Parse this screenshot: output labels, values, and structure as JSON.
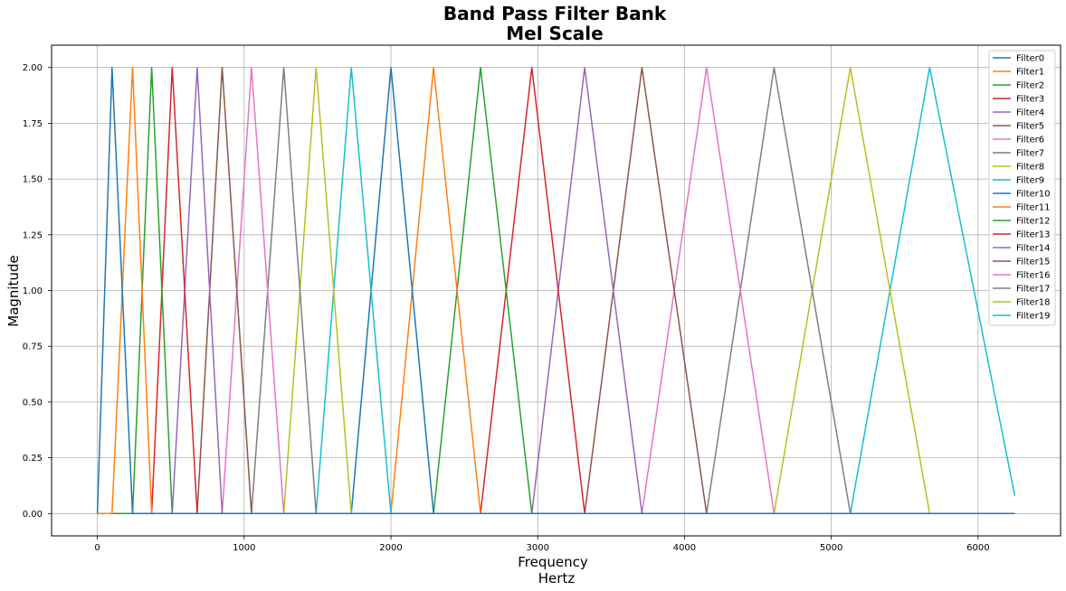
{
  "chart_data": {
    "type": "line",
    "title": "Band Pass Filter Bank",
    "subtitle": "Mel Scale",
    "xlabel": "Frequency",
    "xlabel_sub": "Hertz",
    "ylabel": "Magnitude",
    "xlim": [
      -312,
      6562
    ],
    "ylim": [
      -0.1,
      2.1
    ],
    "x_ticks": [
      0,
      1000,
      2000,
      3000,
      4000,
      5000,
      6000
    ],
    "y_ticks": [
      0.0,
      0.25,
      0.5,
      0.75,
      1.0,
      1.25,
      1.5,
      1.75,
      2.0
    ],
    "x_tick_labels": [
      "0",
      "1000",
      "2000",
      "3000",
      "4000",
      "5000",
      "6000"
    ],
    "y_tick_labels": [
      "0.00",
      "0.25",
      "0.50",
      "0.75",
      "1.00",
      "1.25",
      "1.50",
      "1.75",
      "2.00"
    ],
    "grid": true,
    "legend_position": "top-right",
    "x_domain": [
      0,
      6250
    ],
    "edges": [
      0,
      100,
      240,
      370,
      510,
      680,
      850,
      1050,
      1270,
      1490,
      1730,
      2000,
      2290,
      2610,
      2960,
      3320,
      3710,
      4150,
      4610,
      5130,
      5670,
      6250
    ],
    "peak_value": 2.0,
    "last_filter_end_value": 0.08,
    "series": [
      {
        "name": "Filter0",
        "color": "#1f77b4"
      },
      {
        "name": "Filter1",
        "color": "#ff7f0e"
      },
      {
        "name": "Filter2",
        "color": "#2ca02c"
      },
      {
        "name": "Filter3",
        "color": "#d62728"
      },
      {
        "name": "Filter4",
        "color": "#9467bd"
      },
      {
        "name": "Filter5",
        "color": "#8c564b"
      },
      {
        "name": "Filter6",
        "color": "#e377c2"
      },
      {
        "name": "Filter7",
        "color": "#7f7f7f"
      },
      {
        "name": "Filter8",
        "color": "#bcbd22"
      },
      {
        "name": "Filter9",
        "color": "#17becf"
      },
      {
        "name": "Filter10",
        "color": "#1f77b4"
      },
      {
        "name": "Filter11",
        "color": "#ff7f0e"
      },
      {
        "name": "Filter12",
        "color": "#2ca02c"
      },
      {
        "name": "Filter13",
        "color": "#d62728"
      },
      {
        "name": "Filter14",
        "color": "#9467bd"
      },
      {
        "name": "Filter15",
        "color": "#8c564b"
      },
      {
        "name": "Filter16",
        "color": "#e377c2"
      },
      {
        "name": "Filter17",
        "color": "#7f7f7f"
      },
      {
        "name": "Filter18",
        "color": "#bcbd22"
      },
      {
        "name": "Filter19",
        "color": "#17becf"
      }
    ]
  }
}
